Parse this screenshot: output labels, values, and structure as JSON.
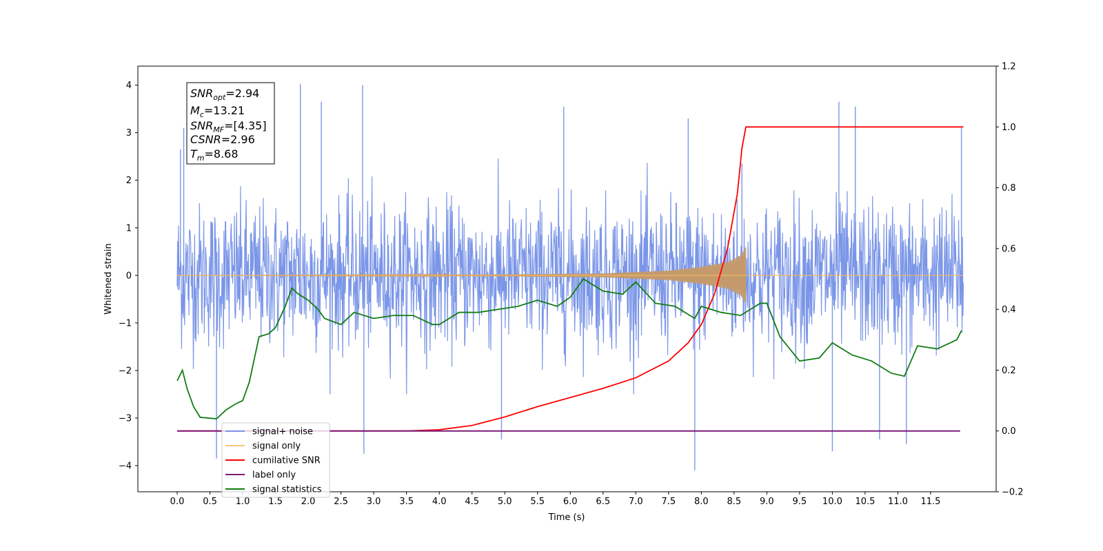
{
  "chart_data": {
    "type": "line",
    "xlabel": "Time (s)",
    "ylabel": "Whitened strain",
    "xlim": [
      -0.6,
      12.5
    ],
    "ylim": [
      -4.55,
      4.4
    ],
    "y2lim": [
      -0.2,
      1.2
    ],
    "x_ticks": [
      0.0,
      0.5,
      1.0,
      1.5,
      2.0,
      2.5,
      3.0,
      3.5,
      4.0,
      4.5,
      5.0,
      5.5,
      6.0,
      6.5,
      7.0,
      7.5,
      8.0,
      8.5,
      9.0,
      9.5,
      10.0,
      10.5,
      11.0,
      11.5
    ],
    "x_tick_labels": [
      "0.0",
      "0.5",
      "1.0",
      "1.5",
      "2.0",
      "2.5",
      "3.0",
      "3.5",
      "4.0",
      "4.5",
      "5.0",
      "5.5",
      "6.0",
      "6.5",
      "7.0",
      "7.5",
      "8.0",
      "8.5",
      "9.0",
      "9.5",
      "10.0",
      "10.5",
      "11.0",
      "11.5"
    ],
    "y_ticks": [
      -4,
      -3,
      -2,
      -1,
      0,
      1,
      2,
      3,
      4
    ],
    "y_tick_labels": [
      "−4",
      "−3",
      "−2",
      "−1",
      "0",
      "1",
      "2",
      "3",
      "4"
    ],
    "y2_ticks": [
      -0.2,
      0.0,
      0.2,
      0.4,
      0.6,
      0.8,
      1.0,
      1.2
    ],
    "y2_tick_labels": [
      "−0.2",
      "0.0",
      "0.2",
      "0.4",
      "0.6",
      "0.8",
      "1.0",
      "1.2"
    ],
    "legend_position": "lower-left",
    "grid": false,
    "annotation": [
      {
        "main": "SNR",
        "sub": "opt",
        "rest": "=2.94"
      },
      {
        "main": "M",
        "sub": "c",
        "rest": "=13.21"
      },
      {
        "main": "SNR",
        "sub": "MF",
        "rest": "=[4.35]"
      },
      {
        "main": "CSNR",
        "sub": "",
        "rest": "=2.96"
      },
      {
        "main": "T",
        "sub": "m",
        "rest": "=8.68"
      }
    ],
    "series": [
      {
        "name": "signal+ noise",
        "color": "#7b96e8",
        "axis": "left",
        "kind": "noise",
        "x_range": [
          0.0,
          12.0
        ],
        "band": [
          -1.6,
          1.6
        ],
        "peak_values": [
          {
            "x": 0.05,
            "y": 2.65
          },
          {
            "x": 0.1,
            "y": 3.1
          },
          {
            "x": 0.6,
            "y": -3.85
          },
          {
            "x": 1.88,
            "y": 4.02
          },
          {
            "x": 2.2,
            "y": 3.65
          },
          {
            "x": 2.83,
            "y": 4.0
          },
          {
            "x": 2.85,
            "y": -3.75
          },
          {
            "x": 4.95,
            "y": -3.45
          },
          {
            "x": 7.9,
            "y": -4.1
          },
          {
            "x": 8.62,
            "y": 2.35
          },
          {
            "x": 10.0,
            "y": -3.7
          },
          {
            "x": 10.1,
            "y": 3.65
          },
          {
            "x": 10.35,
            "y": 3.55
          },
          {
            "x": 10.72,
            "y": -3.45
          },
          {
            "x": 11.13,
            "y": -3.55
          },
          {
            "x": 11.97,
            "y": 3.1
          },
          {
            "x": 5.9,
            "y": 3.55
          },
          {
            "x": 7.8,
            "y": 3.3
          }
        ]
      },
      {
        "name": "signal only",
        "color": "#c49a6c",
        "axis": "left",
        "kind": "chirp",
        "x_range": [
          0.0,
          8.68
        ],
        "envelope": [
          {
            "x": 0.0,
            "y": 0.0
          },
          {
            "x": 5.0,
            "y": 0.02
          },
          {
            "x": 6.5,
            "y": 0.04
          },
          {
            "x": 7.5,
            "y": 0.1
          },
          {
            "x": 8.0,
            "y": 0.18
          },
          {
            "x": 8.4,
            "y": 0.28
          },
          {
            "x": 8.6,
            "y": 0.42
          },
          {
            "x": 8.68,
            "y": 0.6
          }
        ]
      },
      {
        "name": "cumilative SNR",
        "color": "#ff0000",
        "axis": "right",
        "kind": "line",
        "x": [
          0.0,
          3.5,
          4.0,
          4.5,
          5.0,
          5.5,
          6.0,
          6.5,
          7.0,
          7.5,
          7.8,
          8.0,
          8.2,
          8.4,
          8.55,
          8.62,
          8.68,
          12.0
        ],
        "y": [
          0.0,
          0.0,
          0.004,
          0.018,
          0.046,
          0.08,
          0.11,
          0.14,
          0.175,
          0.23,
          0.29,
          0.35,
          0.45,
          0.6,
          0.78,
          0.93,
          1.0,
          1.0
        ]
      },
      {
        "name": "label only",
        "color": "#7a1b7a",
        "axis": "right",
        "kind": "line",
        "x": [
          0.0,
          11.95
        ],
        "y": [
          0.0,
          0.0
        ]
      },
      {
        "name": "signal statistics",
        "color": "#127c12",
        "axis": "right",
        "kind": "line",
        "x": [
          0.0,
          0.08,
          0.15,
          0.25,
          0.35,
          0.5,
          0.6,
          0.75,
          0.9,
          1.0,
          1.1,
          1.25,
          1.4,
          1.5,
          1.65,
          1.75,
          1.85,
          2.0,
          2.15,
          2.25,
          2.5,
          2.7,
          3.0,
          3.3,
          3.6,
          3.9,
          4.0,
          4.3,
          4.6,
          4.9,
          5.2,
          5.5,
          5.8,
          6.0,
          6.2,
          6.5,
          6.8,
          7.0,
          7.3,
          7.6,
          7.9,
          8.0,
          8.3,
          8.6,
          8.9,
          9.0,
          9.2,
          9.5,
          9.8,
          10.0,
          10.3,
          10.6,
          10.9,
          11.1,
          11.3,
          11.6,
          11.9,
          11.97
        ],
        "y": [
          0.165,
          0.2,
          0.14,
          0.08,
          0.045,
          0.042,
          0.04,
          0.07,
          0.09,
          0.1,
          0.16,
          0.31,
          0.32,
          0.34,
          0.41,
          0.47,
          0.45,
          0.43,
          0.4,
          0.37,
          0.35,
          0.39,
          0.37,
          0.38,
          0.38,
          0.35,
          0.35,
          0.39,
          0.39,
          0.4,
          0.41,
          0.43,
          0.41,
          0.44,
          0.5,
          0.46,
          0.45,
          0.49,
          0.42,
          0.41,
          0.37,
          0.41,
          0.39,
          0.38,
          0.42,
          0.42,
          0.31,
          0.23,
          0.24,
          0.29,
          0.25,
          0.23,
          0.19,
          0.18,
          0.28,
          0.27,
          0.3,
          0.33
        ]
      }
    ]
  }
}
